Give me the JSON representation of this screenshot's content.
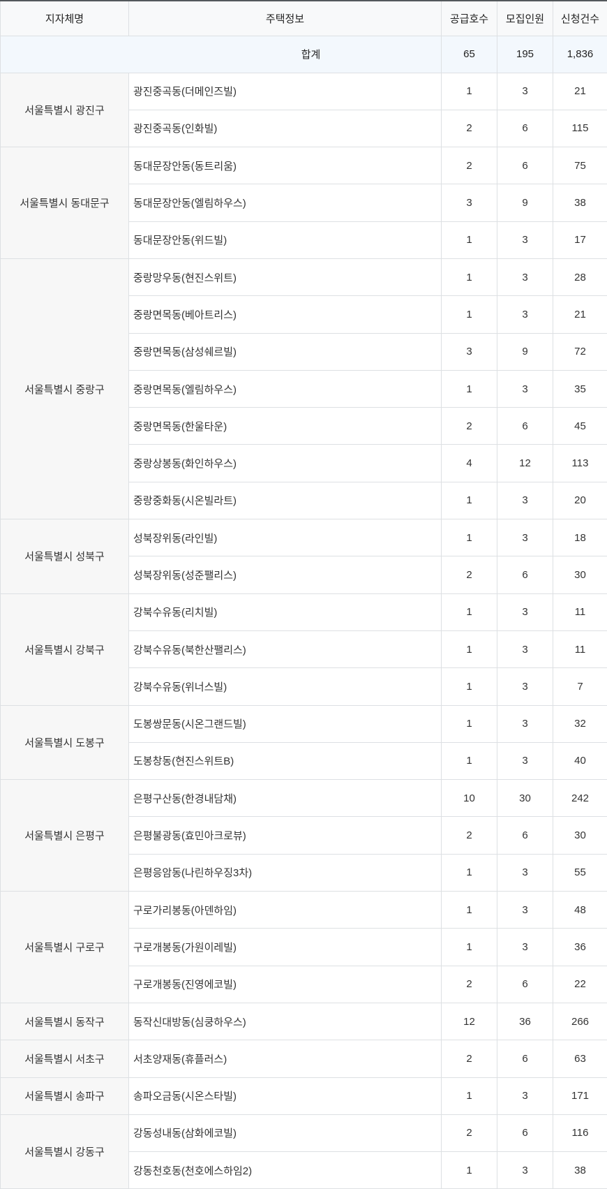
{
  "table": {
    "columns": [
      "지자체명",
      "주택정보",
      "공급호수",
      "모집인원",
      "신청건수"
    ],
    "total_row": {
      "label": "합계",
      "supply": "65",
      "recruit": "195",
      "applications": "1,836"
    },
    "groups": [
      {
        "district": "서울특별시 광진구",
        "rows": [
          {
            "housing": "광진중곡동(더메인즈빌)",
            "supply": "1",
            "recruit": "3",
            "applications": "21"
          },
          {
            "housing": "광진중곡동(인화빌)",
            "supply": "2",
            "recruit": "6",
            "applications": "115"
          }
        ]
      },
      {
        "district": "서울특별시 동대문구",
        "rows": [
          {
            "housing": "동대문장안동(동트리움)",
            "supply": "2",
            "recruit": "6",
            "applications": "75"
          },
          {
            "housing": "동대문장안동(엘림하우스)",
            "supply": "3",
            "recruit": "9",
            "applications": "38"
          },
          {
            "housing": "동대문장안동(위드빌)",
            "supply": "1",
            "recruit": "3",
            "applications": "17"
          }
        ]
      },
      {
        "district": "서울특별시 중랑구",
        "rows": [
          {
            "housing": "중랑망우동(현진스위트)",
            "supply": "1",
            "recruit": "3",
            "applications": "28"
          },
          {
            "housing": "중랑면목동(베아트리스)",
            "supply": "1",
            "recruit": "3",
            "applications": "21"
          },
          {
            "housing": "중랑면목동(삼성쉐르빌)",
            "supply": "3",
            "recruit": "9",
            "applications": "72"
          },
          {
            "housing": "중랑면목동(엘림하우스)",
            "supply": "1",
            "recruit": "3",
            "applications": "35"
          },
          {
            "housing": "중랑면목동(한울타운)",
            "supply": "2",
            "recruit": "6",
            "applications": "45"
          },
          {
            "housing": "중랑상봉동(화인하우스)",
            "supply": "4",
            "recruit": "12",
            "applications": "113"
          },
          {
            "housing": "중랑중화동(시온빌라트)",
            "supply": "1",
            "recruit": "3",
            "applications": "20"
          }
        ]
      },
      {
        "district": "서울특별시 성북구",
        "rows": [
          {
            "housing": "성북장위동(라인빌)",
            "supply": "1",
            "recruit": "3",
            "applications": "18"
          },
          {
            "housing": "성북장위동(성준팰리스)",
            "supply": "2",
            "recruit": "6",
            "applications": "30"
          }
        ]
      },
      {
        "district": "서울특별시 강북구",
        "rows": [
          {
            "housing": "강북수유동(리치빌)",
            "supply": "1",
            "recruit": "3",
            "applications": "11"
          },
          {
            "housing": "강북수유동(북한산팰리스)",
            "supply": "1",
            "recruit": "3",
            "applications": "11"
          },
          {
            "housing": "강북수유동(위너스빌)",
            "supply": "1",
            "recruit": "3",
            "applications": "7"
          }
        ]
      },
      {
        "district": "서울특별시 도봉구",
        "rows": [
          {
            "housing": "도봉쌍문동(시온그랜드빌)",
            "supply": "1",
            "recruit": "3",
            "applications": "32"
          },
          {
            "housing": "도봉창동(현진스위트B)",
            "supply": "1",
            "recruit": "3",
            "applications": "40"
          }
        ]
      },
      {
        "district": "서울특별시 은평구",
        "rows": [
          {
            "housing": "은평구산동(한경내담채)",
            "supply": "10",
            "recruit": "30",
            "applications": "242"
          },
          {
            "housing": "은평불광동(효민아크로뷰)",
            "supply": "2",
            "recruit": "6",
            "applications": "30"
          },
          {
            "housing": "은평응암동(나린하우징3차)",
            "supply": "1",
            "recruit": "3",
            "applications": "55"
          }
        ]
      },
      {
        "district": "서울특별시 구로구",
        "rows": [
          {
            "housing": "구로가리봉동(아덴하임)",
            "supply": "1",
            "recruit": "3",
            "applications": "48"
          },
          {
            "housing": "구로개봉동(가원이레빌)",
            "supply": "1",
            "recruit": "3",
            "applications": "36"
          },
          {
            "housing": "구로개봉동(진영에코빌)",
            "supply": "2",
            "recruit": "6",
            "applications": "22"
          }
        ]
      },
      {
        "district": "서울특별시 동작구",
        "rows": [
          {
            "housing": "동작신대방동(심쿵하우스)",
            "supply": "12",
            "recruit": "36",
            "applications": "266"
          }
        ]
      },
      {
        "district": "서울특별시 서초구",
        "rows": [
          {
            "housing": "서초양재동(휴플러스)",
            "supply": "2",
            "recruit": "6",
            "applications": "63"
          }
        ]
      },
      {
        "district": "서울특별시 송파구",
        "rows": [
          {
            "housing": "송파오금동(시온스타빌)",
            "supply": "1",
            "recruit": "3",
            "applications": "171"
          }
        ]
      },
      {
        "district": "서울특별시 강동구",
        "rows": [
          {
            "housing": "강동성내동(삼화에코빌)",
            "supply": "2",
            "recruit": "6",
            "applications": "116"
          },
          {
            "housing": "강동천호동(천호에스하임2)",
            "supply": "1",
            "recruit": "3",
            "applications": "38"
          }
        ]
      }
    ]
  },
  "colors": {
    "table_top_border": "#54585c",
    "table_side_border": "#9aa0a6",
    "cell_border": "#dde0e3",
    "header_bg": "#f8f9fa",
    "total_row_bg": "#f3f8fd",
    "district_cell_bg": "#f7f7f7",
    "text": "#333333"
  }
}
